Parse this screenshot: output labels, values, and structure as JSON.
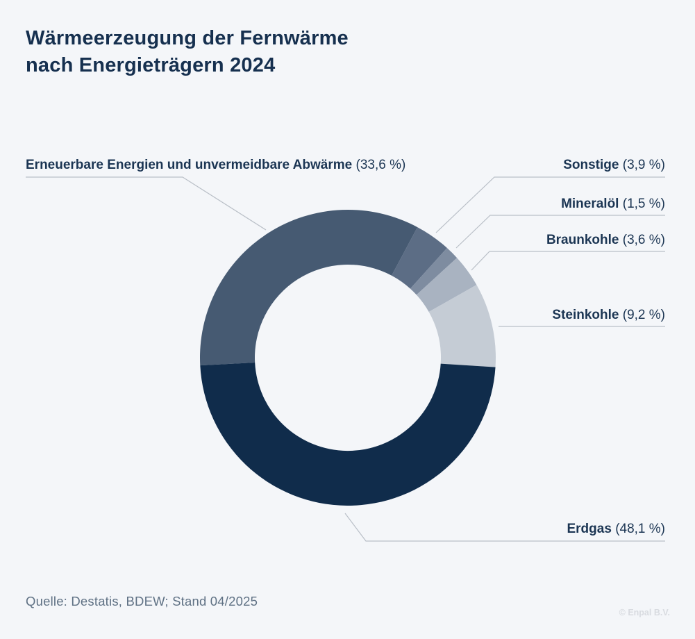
{
  "title_lines": [
    "Wärmeerzeugung der Fernwärme",
    "nach Energieträgern 2024"
  ],
  "source": "Quelle: Destatis, BDEW; Stand 04/2025",
  "copyright": "© Enpal B.V.",
  "chart_data": {
    "type": "pie",
    "variant": "donut",
    "title": "Wärmeerzeugung der Fernwärme nach Energieträgern 2024",
    "unit": "%",
    "start_angle_deg": 183,
    "direction": "clockwise",
    "segments": [
      {
        "label": "Erneuerbare Energien und unvermeidbare Abwärme",
        "value": 33.6,
        "display": "(33,6 %)",
        "color": "#465a72"
      },
      {
        "label": "Sonstige",
        "value": 3.9,
        "display": "(3,9 %)",
        "color": "#5c6d85"
      },
      {
        "label": "Mineralöl",
        "value": 1.5,
        "display": "(1,5 %)",
        "color": "#7e8ca0"
      },
      {
        "label": "Braunkohle",
        "value": 3.6,
        "display": "(3,6 %)",
        "color": "#a9b3c1"
      },
      {
        "label": "Steinkohle",
        "value": 9.2,
        "display": "(9,2 %)",
        "color": "#c5ccd5"
      },
      {
        "label": "Erdgas",
        "value": 48.1,
        "display": "(48,1 %)",
        "color": "#102c4b"
      }
    ]
  }
}
